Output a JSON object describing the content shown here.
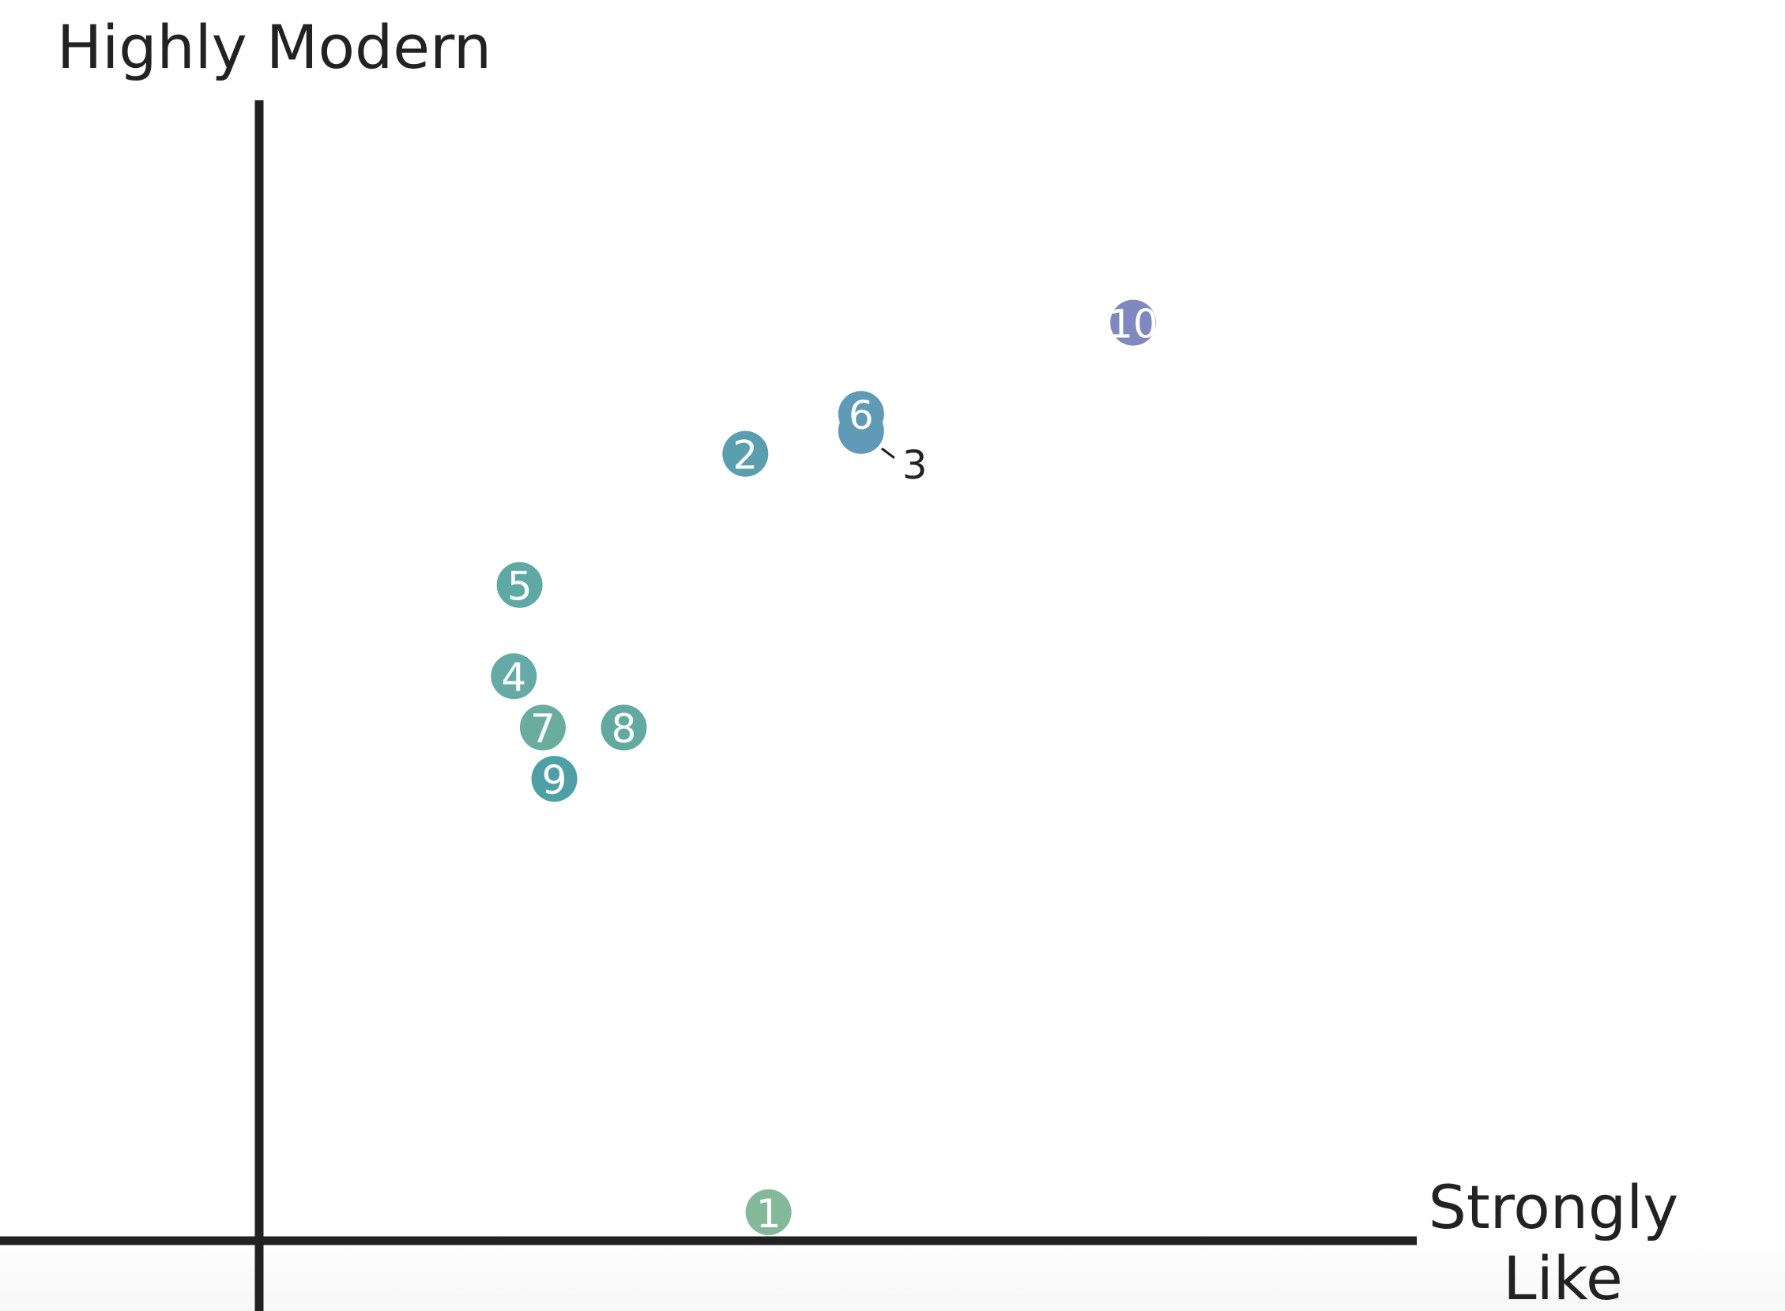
{
  "chart_data": {
    "type": "scatter",
    "title": "",
    "xlabel": "Strongly Like",
    "ylabel": "Highly Modern",
    "xlim": [
      0,
      10
    ],
    "ylim": [
      0,
      10
    ],
    "grid": false,
    "legend": "none",
    "points": [
      {
        "label": "1",
        "x": 4.4,
        "y": 0.25,
        "color": "#84b89a"
      },
      {
        "label": "2",
        "x": 4.2,
        "y": 6.9,
        "color": "#5b9fae"
      },
      {
        "label": "3",
        "x": 5.2,
        "y": 7.1,
        "color": "#6299b8",
        "callout": true
      },
      {
        "label": "4",
        "x": 2.2,
        "y": 4.95,
        "color": "#66aaa7"
      },
      {
        "label": "5",
        "x": 2.25,
        "y": 5.75,
        "color": "#5fa9a4"
      },
      {
        "label": "6",
        "x": 5.2,
        "y": 7.25,
        "color": "#5f9bb4"
      },
      {
        "label": "7",
        "x": 2.45,
        "y": 4.5,
        "color": "#6aad9f"
      },
      {
        "label": "8",
        "x": 3.15,
        "y": 4.5,
        "color": "#62aaa0"
      },
      {
        "label": "9",
        "x": 2.55,
        "y": 4.05,
        "color": "#4fa0a6"
      },
      {
        "label": "10",
        "x": 7.55,
        "y": 8.05,
        "color": "#8088c0"
      }
    ]
  }
}
